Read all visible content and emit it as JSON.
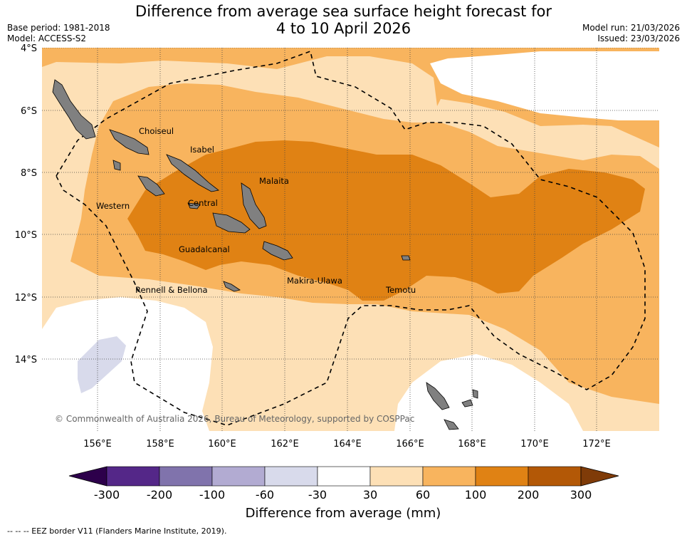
{
  "title": {
    "line1": "Difference from average sea surface height forecast for",
    "line2": "4 to 10 April 2026"
  },
  "meta": {
    "base_period": "Base period: 1981-2018",
    "model": "Model: ACCESS-S2",
    "model_run": "Model run: 21/03/2026",
    "issued": "Issued: 23/03/2026"
  },
  "map": {
    "lat_labels": [
      "4°S",
      "6°S",
      "8°S",
      "10°S",
      "12°S",
      "14°S"
    ],
    "lon_labels": [
      "156°E",
      "158°E",
      "160°E",
      "162°E",
      "164°E",
      "166°E",
      "168°E",
      "170°E",
      "172°E"
    ],
    "province_labels": [
      "Choiseul",
      "Isabel",
      "Malaita",
      "Western",
      "Central",
      "Guadalcanal",
      "Makira-Ulawa",
      "Temotu",
      "Rennell & Bellona"
    ],
    "copyright": "© Commonwealth of Australia 2026, Bureau of Meteorology, supported by COSPPac",
    "colors": {
      "c30_60": "#fde0b6",
      "c60_100": "#f8b45e",
      "c100_200": "#e08214",
      "c200_300": "#b35806",
      "neg_30_60": "#d8daeb",
      "land": "#808080"
    }
  },
  "colorbar": {
    "title": "Difference from average (mm)",
    "ticks": [
      "-300",
      "-200",
      "-100",
      "-60",
      "-30",
      "30",
      "60",
      "100",
      "200",
      "300"
    ],
    "colors": [
      "#542788",
      "#8073ac",
      "#b2abd2",
      "#d8daeb",
      "#ffffff",
      "#fde0b6",
      "#f8b45e",
      "#e08214",
      "#b35806"
    ],
    "under_color": "#2d004b",
    "over_color": "#7f3b08"
  },
  "footer": {
    "legend_text": "--  --  -- EEZ border V11 (Flanders Marine Institute, 2019)."
  }
}
